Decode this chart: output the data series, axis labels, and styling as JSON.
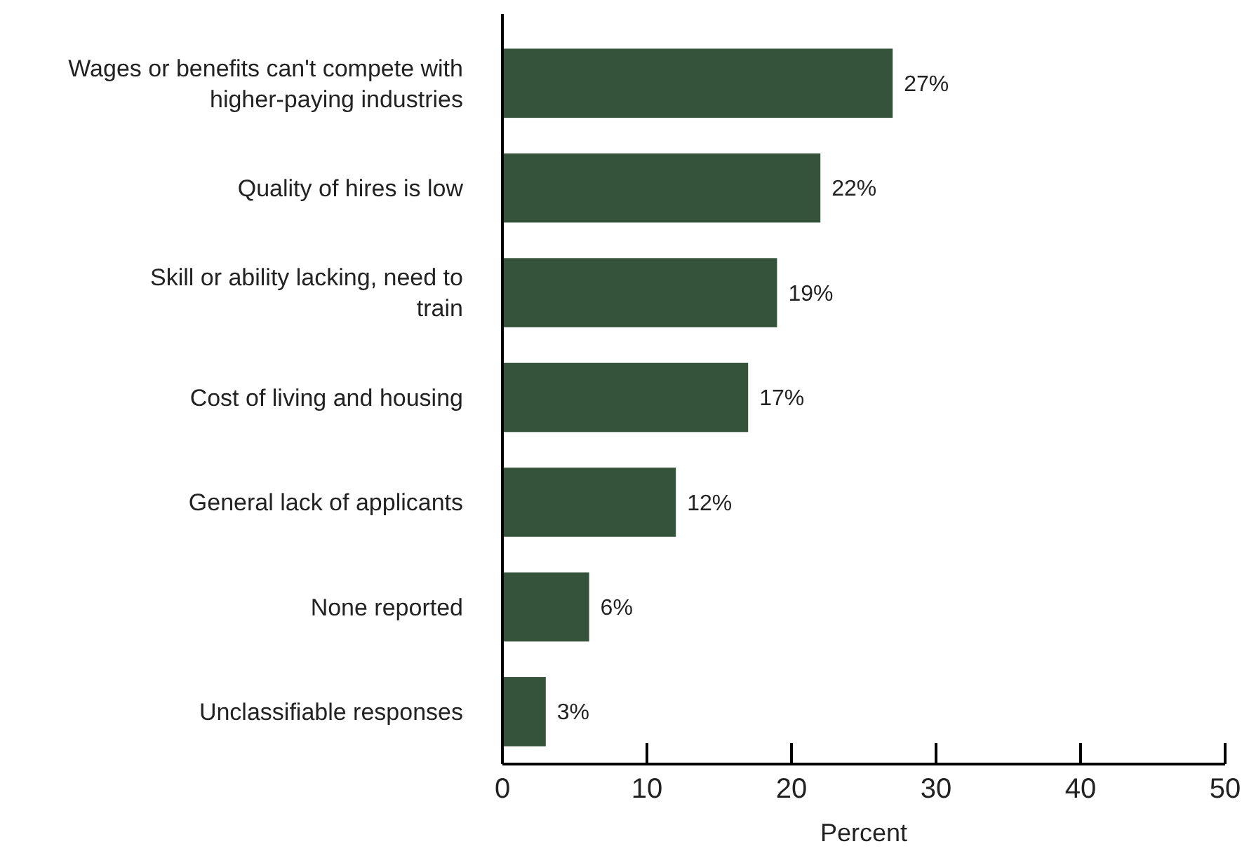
{
  "chart_data": {
    "type": "bar",
    "orientation": "horizontal",
    "xlabel": "Percent",
    "categories": [
      "Wages or benefits can't compete with higher-paying industries",
      "Quality of hires is low",
      "Skill or ability lacking, need to train",
      "Cost of living and housing",
      "General lack of applicants",
      "None reported",
      "Unclassifiable responses"
    ],
    "values": [
      27,
      22,
      19,
      17,
      12,
      6,
      3
    ],
    "value_labels": [
      "27%",
      "22%",
      "19%",
      "17%",
      "12%",
      "6%",
      "3%"
    ],
    "color": "#35533a",
    "xlim": [
      0,
      50
    ],
    "xticks": [
      0,
      10,
      20,
      30,
      40,
      50
    ],
    "grid": false
  }
}
